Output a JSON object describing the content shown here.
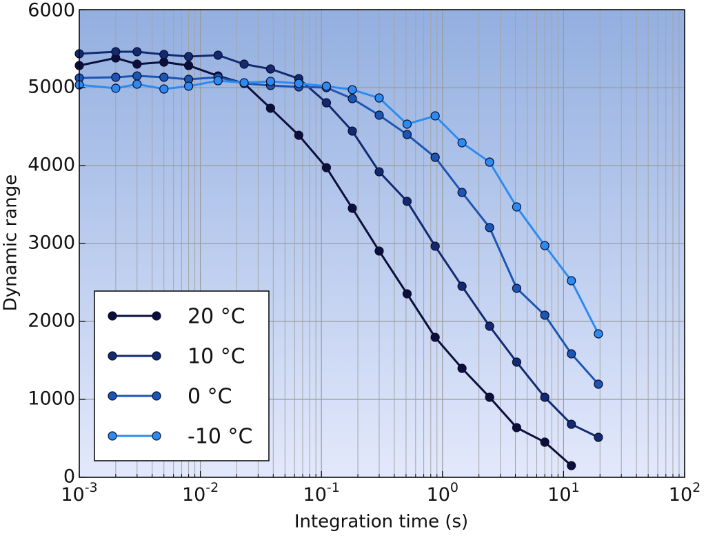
{
  "chart_data": {
    "type": "line",
    "x_label": "Integration time (s)",
    "y_label": "Dynamic range",
    "x_scale": "log",
    "grid": true,
    "legend_position": "lower left",
    "x": [
      0.001,
      0.002,
      0.003,
      0.005,
      0.008,
      0.014,
      0.023,
      0.038,
      0.065,
      0.11,
      0.18,
      0.3,
      0.51,
      0.87,
      1.45,
      2.45,
      4.1,
      7.0,
      11.6,
      19.4
    ],
    "series": [
      {
        "name": "20 °C",
        "color": "#0c0f3c",
        "values": [
          5283,
          5380,
          5301,
          5327,
          5283,
          5150,
          5053,
          4735,
          4389,
          3973,
          3451,
          2903,
          2354,
          1796,
          1398,
          1027,
          637,
          451,
          150,
          null
        ]
      },
      {
        "name": "10 °C",
        "color": "#122a72",
        "values": [
          5434,
          5460,
          5460,
          5425,
          5398,
          5416,
          5301,
          5239,
          5115,
          4805,
          4442,
          3920,
          3540,
          2965,
          2451,
          1938,
          1478,
          1027,
          681,
          513
        ]
      },
      {
        "name": "0 °C",
        "color": "#1b56b4",
        "values": [
          5124,
          5133,
          5150,
          5133,
          5106,
          5133,
          5053,
          5027,
          5009,
          5000,
          4858,
          4646,
          4398,
          4106,
          3655,
          3204,
          2425,
          2080,
          1584,
          1195
        ]
      },
      {
        "name": "-10 °C",
        "color": "#2b8bf2",
        "values": [
          5035,
          4991,
          5044,
          4982,
          5018,
          5088,
          5062,
          5080,
          5053,
          5018,
          4973,
          4867,
          4531,
          4637,
          4292,
          4044,
          3469,
          2973,
          2522,
          1841
        ]
      }
    ],
    "xlim": [
      0.001,
      100
    ],
    "ylim": [
      0,
      6000
    ],
    "xticks": [
      {
        "value": 0.001,
        "label": "10",
        "exponent": "-3"
      },
      {
        "value": 0.01,
        "label": "10",
        "exponent": "-2"
      },
      {
        "value": 0.1,
        "label": "10",
        "exponent": "-1"
      },
      {
        "value": 1,
        "label": "10",
        "exponent": "0"
      },
      {
        "value": 10,
        "label": "10",
        "exponent": "1"
      },
      {
        "value": 100,
        "label": "10",
        "exponent": "2"
      }
    ],
    "xminorticks": [
      0.002,
      0.003,
      0.004,
      0.005,
      0.006,
      0.007,
      0.008,
      0.009,
      0.02,
      0.03,
      0.04,
      0.05,
      0.06,
      0.07,
      0.08,
      0.09,
      0.2,
      0.3,
      0.4,
      0.5,
      0.6,
      0.7,
      0.8,
      0.9,
      2,
      3,
      4,
      5,
      6,
      7,
      8,
      9,
      20,
      30,
      40,
      50,
      60,
      70,
      80,
      90
    ],
    "yticks": [
      0,
      1000,
      2000,
      3000,
      4000,
      5000,
      6000
    ]
  }
}
